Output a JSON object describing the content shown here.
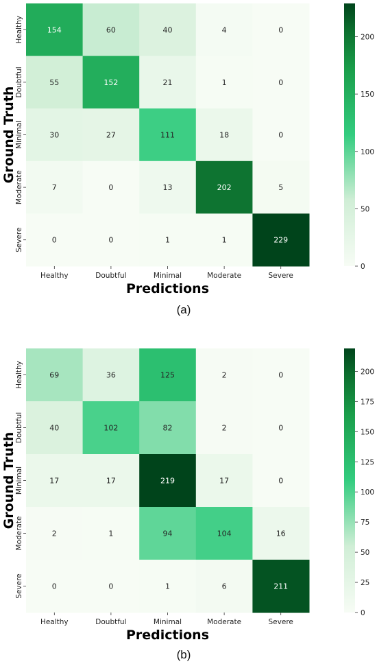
{
  "chart_data": [
    {
      "type": "heatmap",
      "panel_label": "(a)",
      "xlabel": "Predictions",
      "ylabel": "Ground Truth",
      "x_categories": [
        "Healthy",
        "Doubtful",
        "Minimal",
        "Moderate",
        "Severe"
      ],
      "y_categories": [
        "Healthy",
        "Doubtful",
        "Minimal",
        "Moderate",
        "Severe"
      ],
      "values": [
        [
          154,
          60,
          40,
          4,
          0
        ],
        [
          55,
          152,
          21,
          1,
          0
        ],
        [
          30,
          27,
          111,
          18,
          0
        ],
        [
          7,
          0,
          13,
          202,
          5
        ],
        [
          0,
          0,
          1,
          1,
          229
        ]
      ],
      "colorbar": {
        "range": [
          0,
          229
        ],
        "ticks": [
          "0",
          "50",
          "100",
          "150",
          "200"
        ],
        "tick_values": [
          0,
          50,
          100,
          150,
          200
        ]
      },
      "colormap": "Greens",
      "grid": false
    },
    {
      "type": "heatmap",
      "panel_label": "(b)",
      "xlabel": "Predictions",
      "ylabel": "Ground Truth",
      "x_categories": [
        "Healthy",
        "Doubtful",
        "Minimal",
        "Moderate",
        "Severe"
      ],
      "y_categories": [
        "Healthy",
        "Doubtful",
        "Minimal",
        "Moderate",
        "Severe"
      ],
      "values": [
        [
          69,
          36,
          125,
          2,
          0
        ],
        [
          40,
          102,
          82,
          2,
          0
        ],
        [
          17,
          17,
          219,
          17,
          0
        ],
        [
          2,
          1,
          94,
          104,
          16
        ],
        [
          0,
          0,
          1,
          6,
          211
        ]
      ],
      "colorbar": {
        "range": [
          0,
          219
        ],
        "ticks": [
          "0",
          "25",
          "50",
          "75",
          "100",
          "125",
          "150",
          "175",
          "200"
        ],
        "tick_values": [
          0,
          25,
          50,
          75,
          100,
          125,
          150,
          175,
          200
        ]
      },
      "colormap": "Greens",
      "grid": false
    }
  ]
}
